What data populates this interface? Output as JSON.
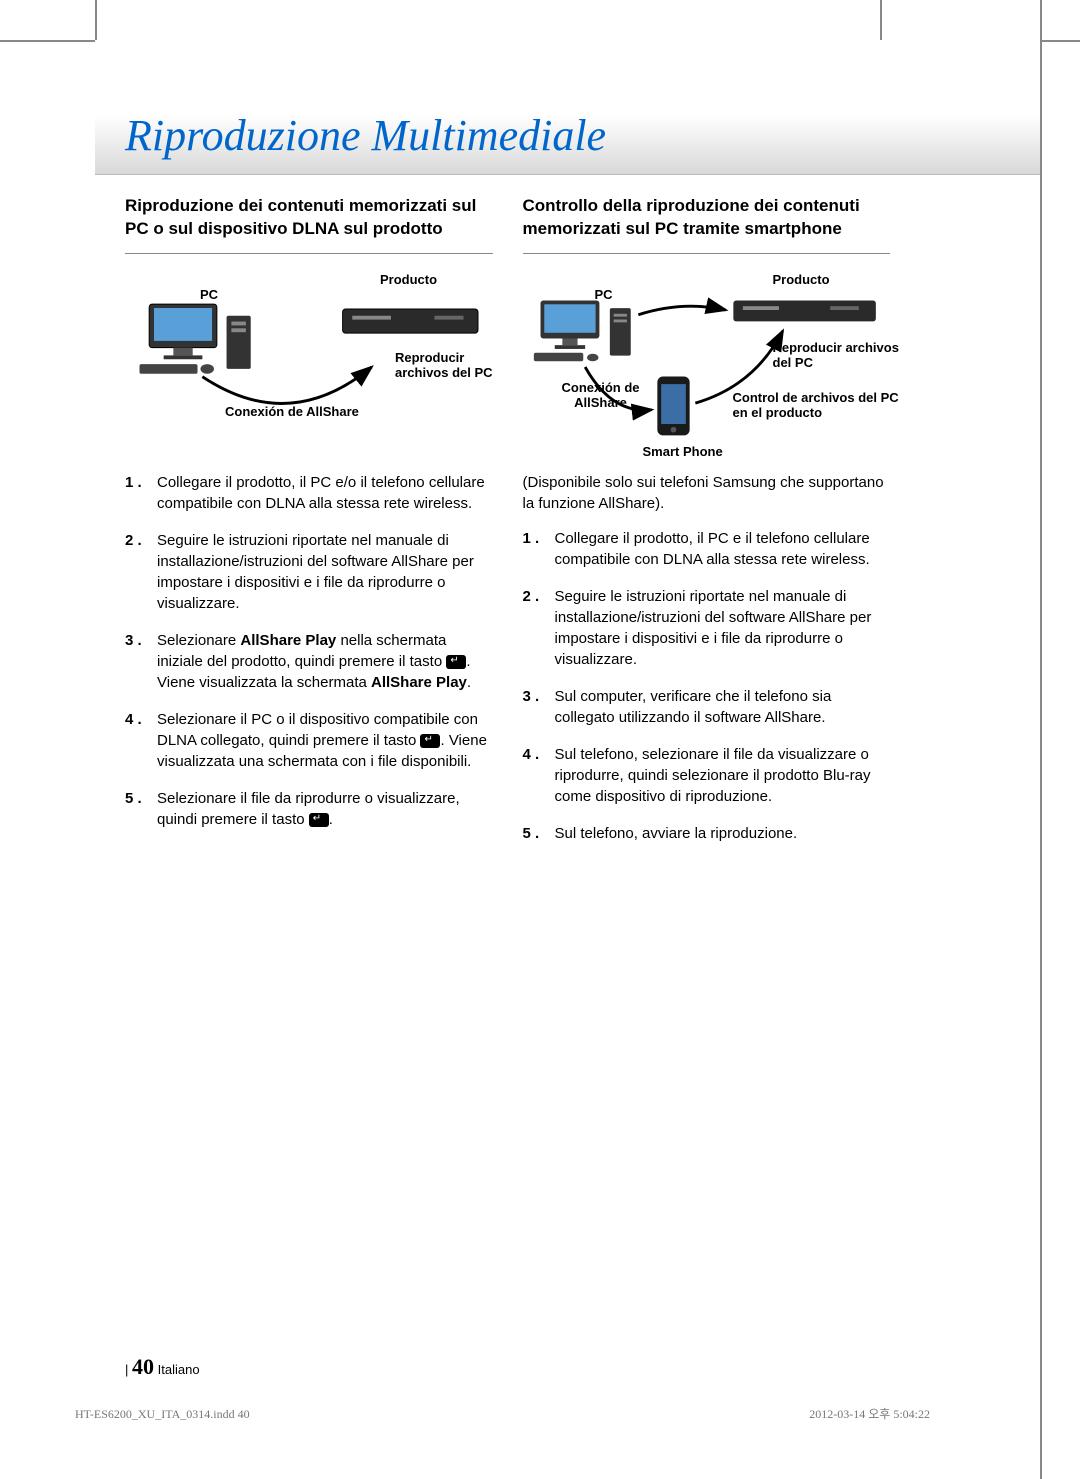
{
  "title": "Riproduzione Multimediale",
  "left": {
    "heading": "Riproduzione dei contenuti memorizzati sul PC o sul dispositivo DLNA sul prodotto",
    "diagram": {
      "pc": "PC",
      "producto": "Producto",
      "play": "Reproducir archivos del PC",
      "conn": "Conexión de AllShare"
    },
    "steps": [
      {
        "pre": "Collegare il prodotto, il PC e/o il telefono cellulare compatibile con DLNA alla stessa rete wireless."
      },
      {
        "pre": "Seguire le istruzioni riportate nel manuale di installazione/istruzioni del software AllShare per impostare i dispositivi e i file da riprodurre o visualizzare."
      },
      {
        "pre": "Selezionare ",
        "b1": "AllShare Play",
        "mid": " nella schermata iniziale del prodotto, quindi premere il tasto ",
        "key": true,
        "post": ". Viene visualizzata la schermata ",
        "b2": "AllShare Play",
        "tail": "."
      },
      {
        "pre": "Selezionare il PC o il dispositivo compatibile con DLNA collegato, quindi premere il tasto ",
        "key": true,
        "post": ". Viene visualizzata una schermata con i file disponibili."
      },
      {
        "pre": "Selezionare il file da riprodurre o visualizzare, quindi premere il tasto ",
        "key": true,
        "post": "."
      }
    ]
  },
  "right": {
    "heading": "Controllo della riproduzione dei contenuti memorizzati sul PC tramite smartphone",
    "diagram": {
      "pc": "PC",
      "producto": "Producto",
      "play": "Reproducir archivos del PC",
      "conn": "Conexión de AllShare",
      "control": "Control de archivos del PC en el producto",
      "phone": "Smart Phone"
    },
    "intro": "(Disponibile solo sui telefoni Samsung che supportano la funzione AllShare).",
    "steps": [
      {
        "pre": "Collegare il prodotto, il PC e il telefono cellulare compatibile con DLNA alla stessa rete wireless."
      },
      {
        "pre": "Seguire le istruzioni riportate nel manuale di installazione/istruzioni del software AllShare per impostare i dispositivi e i file da riprodurre o visualizzare."
      },
      {
        "pre": "Sul computer, verificare che il telefono sia collegato utilizzando il software AllShare."
      },
      {
        "pre": "Sul telefono, selezionare il file da visualizzare o riprodurre, quindi selezionare il prodotto Blu-ray come dispositivo di riproduzione."
      },
      {
        "pre": "Sul telefono, avviare la riproduzione."
      }
    ]
  },
  "footer": {
    "page": "40",
    "lang": "Italiano",
    "bar": "|"
  },
  "print": {
    "left": "HT-ES6200_XU_ITA_0314.indd   40",
    "right": "2012-03-14   오후 5:04:22"
  },
  "colors": {
    "title": "#0066cc",
    "band_top": "#ffffff",
    "band_bot": "#d8d8d8",
    "rule": "#888888",
    "text": "#000000",
    "print": "#777777"
  }
}
